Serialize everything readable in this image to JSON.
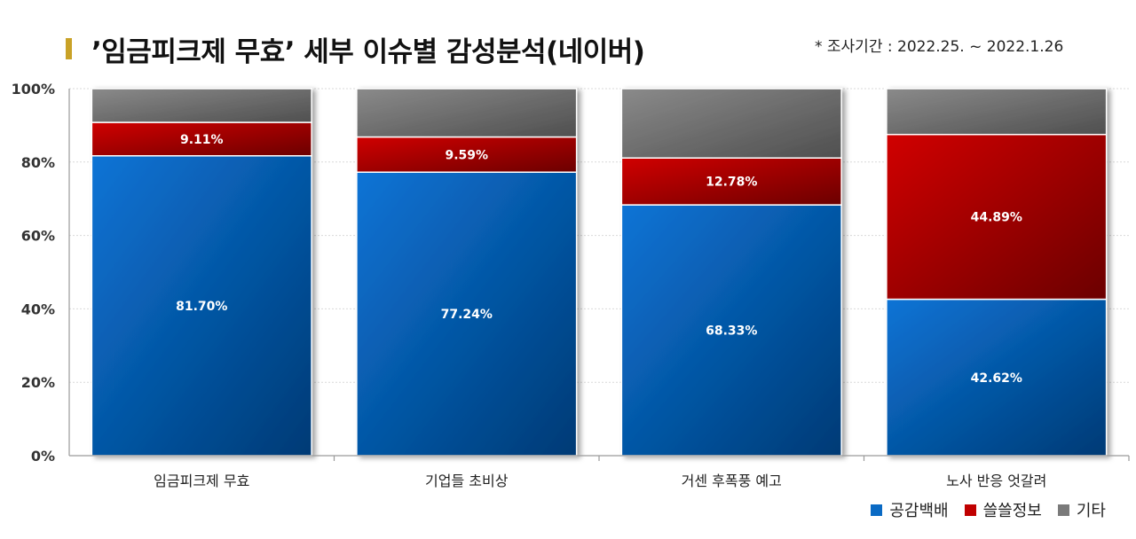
{
  "title": "’임금피크제 무효’ 세부 이슈별 감성분석(네이버)",
  "period": "* 조사기간 : 2022.25. ~ 2022.1.26",
  "colors": {
    "title_bar": "#c9a227",
    "positive": "#0a6ac4",
    "negative": "#c00000",
    "other": "#7a7a7a"
  },
  "chart_data": {
    "type": "bar",
    "stacked": true,
    "categories": [
      "임금피크제 무효",
      "기업들 초비상",
      "거센 후폭풍 예고",
      "노사 반응 엇갈려"
    ],
    "series": [
      {
        "name": "공감백배",
        "values": [
          81.7,
          77.24,
          68.33,
          42.62
        ],
        "labels": [
          "81.70%",
          "77.24%",
          "68.33%",
          "42.62%"
        ]
      },
      {
        "name": "쓸쓸정보",
        "values": [
          9.11,
          9.59,
          12.78,
          44.89
        ],
        "labels": [
          "9.11%",
          "9.59%",
          "12.78%",
          "44.89%"
        ]
      },
      {
        "name": "기타",
        "values": [
          9.19,
          13.17,
          18.89,
          12.49
        ]
      }
    ],
    "yticks": [
      "0%",
      "20%",
      "40%",
      "60%",
      "80%",
      "100%"
    ],
    "ylim": [
      0,
      100
    ],
    "grid": true,
    "legend": "bottom-right"
  }
}
